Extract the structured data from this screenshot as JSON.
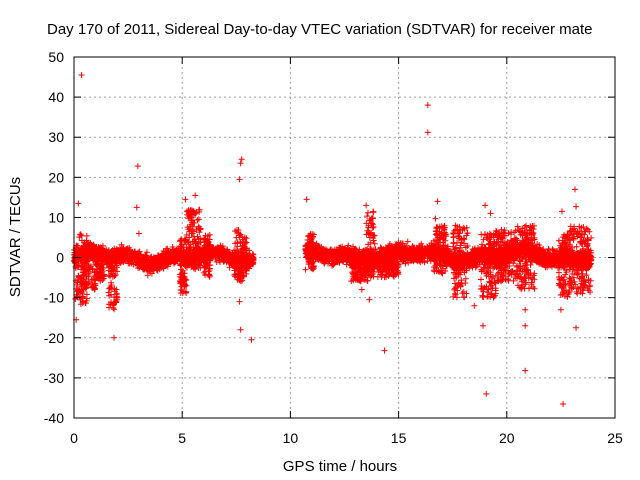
{
  "chart_data": {
    "type": "scatter",
    "title": "Day 170 of 2011, Sidereal Day-to-day VTEC variation (SDTVAR) for receiver mate",
    "xlabel": "GPS time / hours",
    "ylabel": "SDTVAR / TECUs",
    "xlim": [
      0,
      25
    ],
    "ylim": [
      -40,
      50
    ],
    "xticks": [
      0,
      5,
      10,
      15,
      20,
      25
    ],
    "yticks": [
      -40,
      -30,
      -20,
      -10,
      0,
      10,
      20,
      30,
      40,
      50
    ],
    "grid": true,
    "marker": "+",
    "color": "#ff0000",
    "segments": [
      {
        "x0": 0.0,
        "x1": 8.3,
        "center": 0.0,
        "amp": 2.2
      },
      {
        "x0": 10.7,
        "x1": 23.9,
        "center": 0.5,
        "amp": 2.4
      }
    ],
    "clusters": [
      {
        "x0": 0.05,
        "x1": 0.6,
        "ymin": -12,
        "ymax": 6
      },
      {
        "x0": 0.4,
        "x1": 1.0,
        "ymin": -8,
        "ymax": 4
      },
      {
        "x0": 1.0,
        "x1": 1.4,
        "ymin": -6,
        "ymax": 3
      },
      {
        "x0": 1.6,
        "x1": 2.0,
        "ymin": -13,
        "ymax": 2
      },
      {
        "x0": 4.9,
        "x1": 5.2,
        "ymin": -9,
        "ymax": 5
      },
      {
        "x0": 5.2,
        "x1": 5.9,
        "ymin": -3,
        "ymax": 12
      },
      {
        "x0": 6.0,
        "x1": 6.3,
        "ymin": -5,
        "ymax": 6
      },
      {
        "x0": 7.4,
        "x1": 8.0,
        "ymin": -6,
        "ymax": 7
      },
      {
        "x0": 10.8,
        "x1": 11.1,
        "ymin": -3,
        "ymax": 6
      },
      {
        "x0": 13.5,
        "x1": 13.9,
        "ymin": -5,
        "ymax": 12
      },
      {
        "x0": 12.8,
        "x1": 13.6,
        "ymin": -6,
        "ymax": 2
      },
      {
        "x0": 14.0,
        "x1": 15.0,
        "ymin": -5,
        "ymax": 1
      },
      {
        "x0": 16.6,
        "x1": 17.2,
        "ymin": -4,
        "ymax": 8
      },
      {
        "x0": 17.5,
        "x1": 18.2,
        "ymin": -10,
        "ymax": 8
      },
      {
        "x0": 18.8,
        "x1": 19.5,
        "ymin": -10,
        "ymax": 6
      },
      {
        "x0": 19.5,
        "x1": 20.5,
        "ymin": -6,
        "ymax": 7
      },
      {
        "x0": 20.5,
        "x1": 21.3,
        "ymin": -8,
        "ymax": 8
      },
      {
        "x0": 22.4,
        "x1": 22.9,
        "ymin": -10,
        "ymax": 6
      },
      {
        "x0": 22.9,
        "x1": 23.9,
        "ymin": -9,
        "ymax": 8
      }
    ],
    "outliers": [
      [
        0.35,
        45.5
      ],
      [
        0.2,
        13.5
      ],
      [
        0.1,
        -15.5
      ],
      [
        1.85,
        -20
      ],
      [
        2.95,
        22.8
      ],
      [
        2.9,
        12.5
      ],
      [
        3.0,
        6
      ],
      [
        5.15,
        14.5
      ],
      [
        5.6,
        15.5
      ],
      [
        5.4,
        11
      ],
      [
        7.75,
        24.5
      ],
      [
        7.7,
        23.5
      ],
      [
        7.65,
        19.5
      ],
      [
        7.65,
        -11
      ],
      [
        7.7,
        -18
      ],
      [
        8.2,
        -20.5
      ],
      [
        10.75,
        14.5
      ],
      [
        10.7,
        -3
      ],
      [
        13.5,
        13
      ],
      [
        14.35,
        -23.2
      ],
      [
        13.3,
        -8
      ],
      [
        13.65,
        -10.5
      ],
      [
        16.35,
        38
      ],
      [
        16.35,
        31.2
      ],
      [
        16.8,
        14
      ],
      [
        16.7,
        9.7
      ],
      [
        18.5,
        -12
      ],
      [
        18.9,
        -17
      ],
      [
        19.05,
        -34
      ],
      [
        19.25,
        11
      ],
      [
        19.0,
        13
      ],
      [
        20.85,
        -13
      ],
      [
        20.85,
        -17
      ],
      [
        20.85,
        -28.2
      ],
      [
        22.6,
        -36.5
      ],
      [
        23.15,
        17
      ],
      [
        23.2,
        12.7
      ],
      [
        23.2,
        -17.5
      ],
      [
        22.55,
        11.5
      ],
      [
        22.5,
        -13
      ]
    ]
  }
}
